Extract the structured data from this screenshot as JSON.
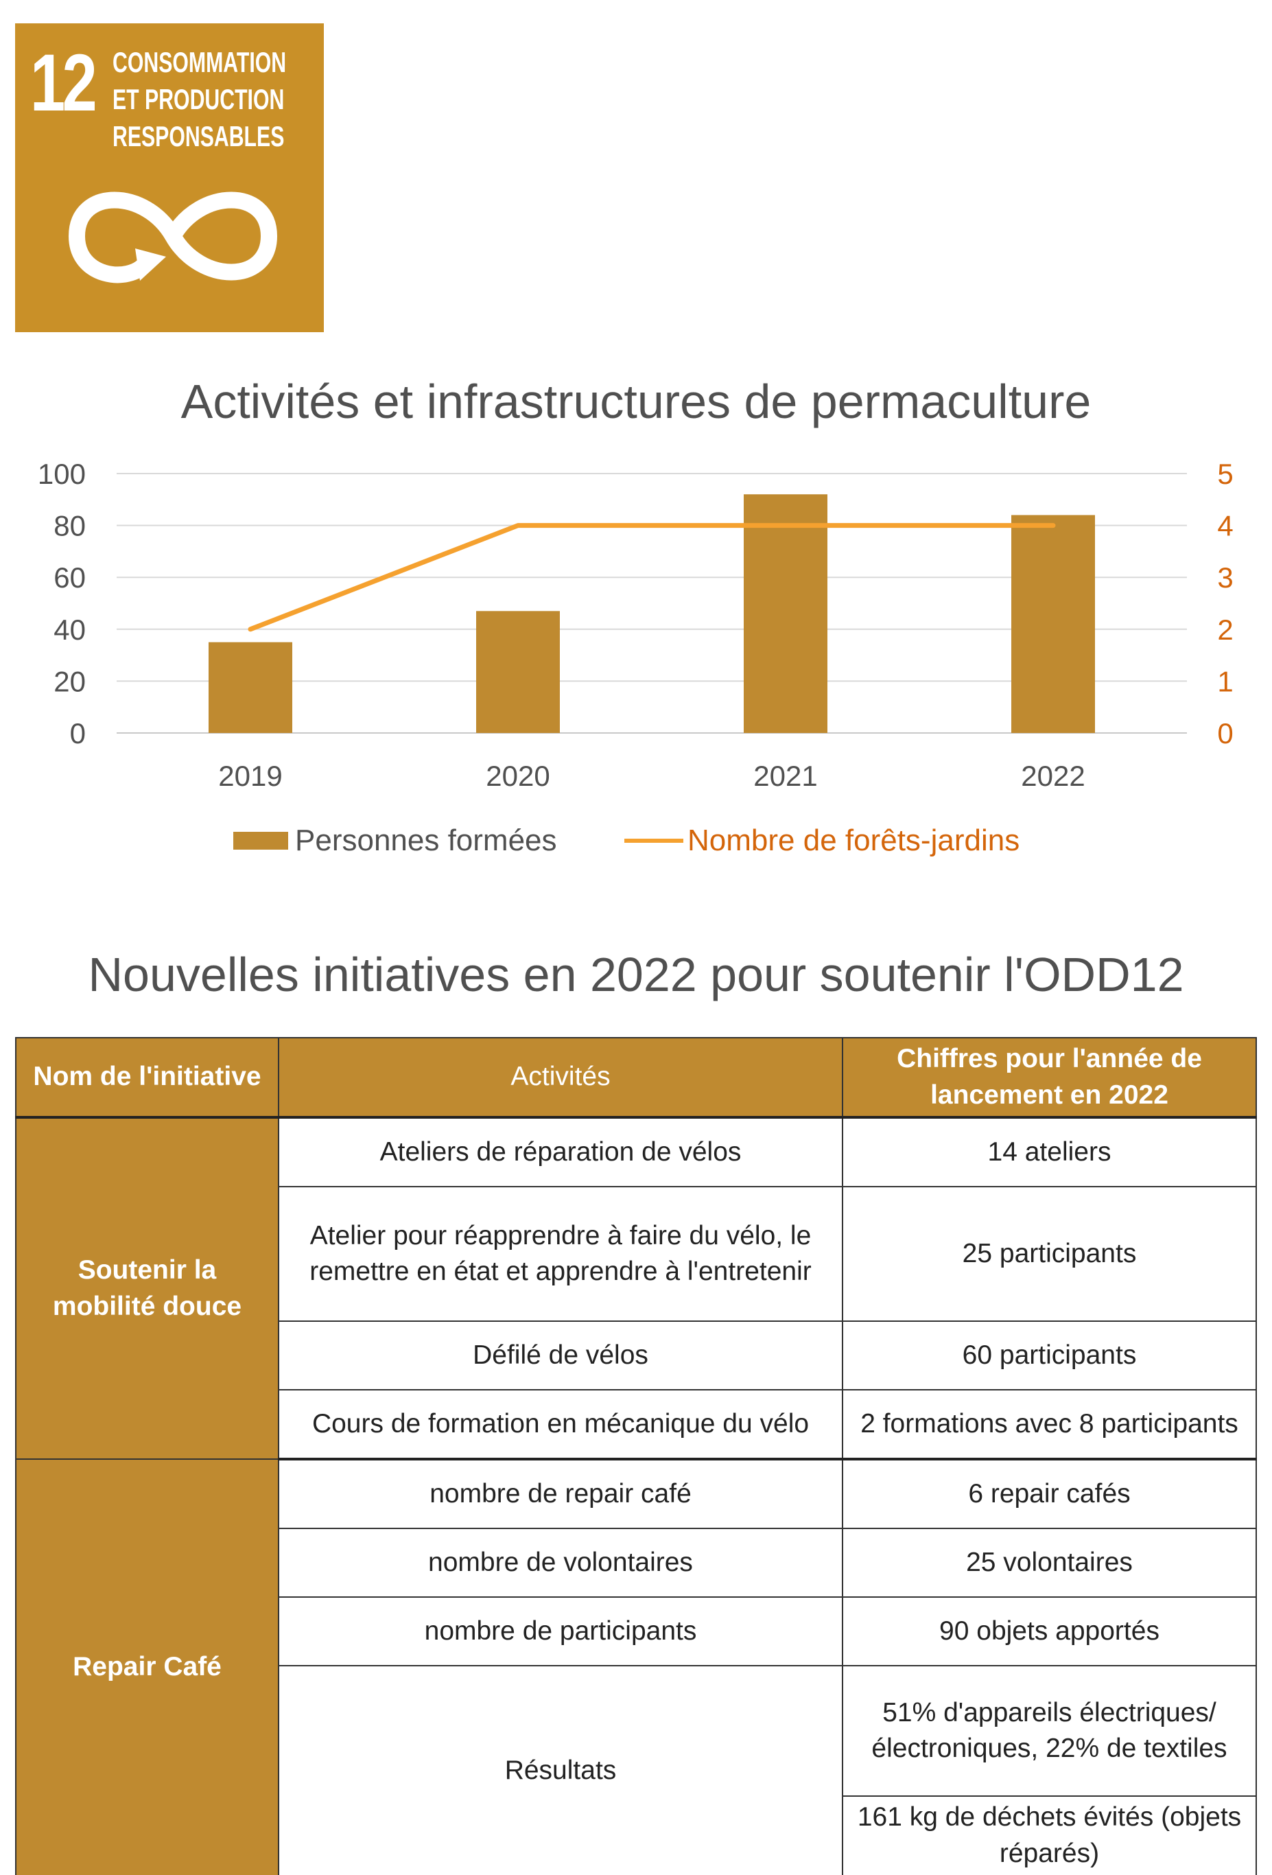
{
  "logo": {
    "number": "12",
    "lines": [
      "CONSOMMATION",
      "ET PRODUCTION",
      "RESPONSABLES"
    ],
    "icon": "infinity-arrow-icon",
    "color": "#C99028"
  },
  "chart_data": {
    "type": "bar",
    "title": "Activités et infrastructures de permaculture",
    "categories": [
      "2019",
      "2020",
      "2021",
      "2022"
    ],
    "series": [
      {
        "name": "Personnes formées",
        "type": "bar",
        "axis": "left",
        "values": [
          35,
          47,
          92,
          84
        ],
        "color": "#BF8A30"
      },
      {
        "name": "Nombre de forêts-jardins",
        "type": "line",
        "axis": "right",
        "values": [
          2,
          4,
          4,
          4
        ],
        "color": "#F5A12F"
      }
    ],
    "ylim": [
      0,
      100
    ],
    "yticks": [
      "0",
      "20",
      "40",
      "60",
      "80",
      "100"
    ],
    "y2lim": [
      0,
      5
    ],
    "y2ticks": [
      "0",
      "1",
      "2",
      "3",
      "4",
      "5"
    ],
    "legend": "bottom",
    "grid": true
  },
  "table": {
    "title": "Nouvelles initiatives en 2022 pour soutenir l'ODD12",
    "headers": [
      "Nom de l'initiative",
      "Activités",
      "Chiffres pour l'année de lancement en 2022"
    ],
    "groups": [
      {
        "name": "Soutenir la mobilité douce",
        "rows": [
          {
            "activity": "Ateliers de réparation de vélos",
            "figure": "14 ateliers"
          },
          {
            "activity": "Atelier pour réapprendre à faire du vélo, le remettre en état et apprendre à l'entretenir",
            "figure": "25 participants"
          },
          {
            "activity": "Défilé de vélos",
            "figure": "60 participants"
          },
          {
            "activity": "Cours de formation en mécanique du vélo",
            "figure": "2 formations avec 8 participants"
          }
        ]
      },
      {
        "name": "Repair Café",
        "rows": [
          {
            "activity": "nombre de repair café",
            "figure": "6 repair cafés"
          },
          {
            "activity": "nombre de volontaires",
            "figure": "25 volontaires"
          },
          {
            "activity": "nombre de participants",
            "figure": "90 objets apportés"
          },
          {
            "activity": "Résultats",
            "figures": [
              "51% d'appareils électriques/électroniques, 22% de textiles",
              "161 kg de déchets évités (objets réparés)"
            ]
          }
        ]
      }
    ]
  }
}
